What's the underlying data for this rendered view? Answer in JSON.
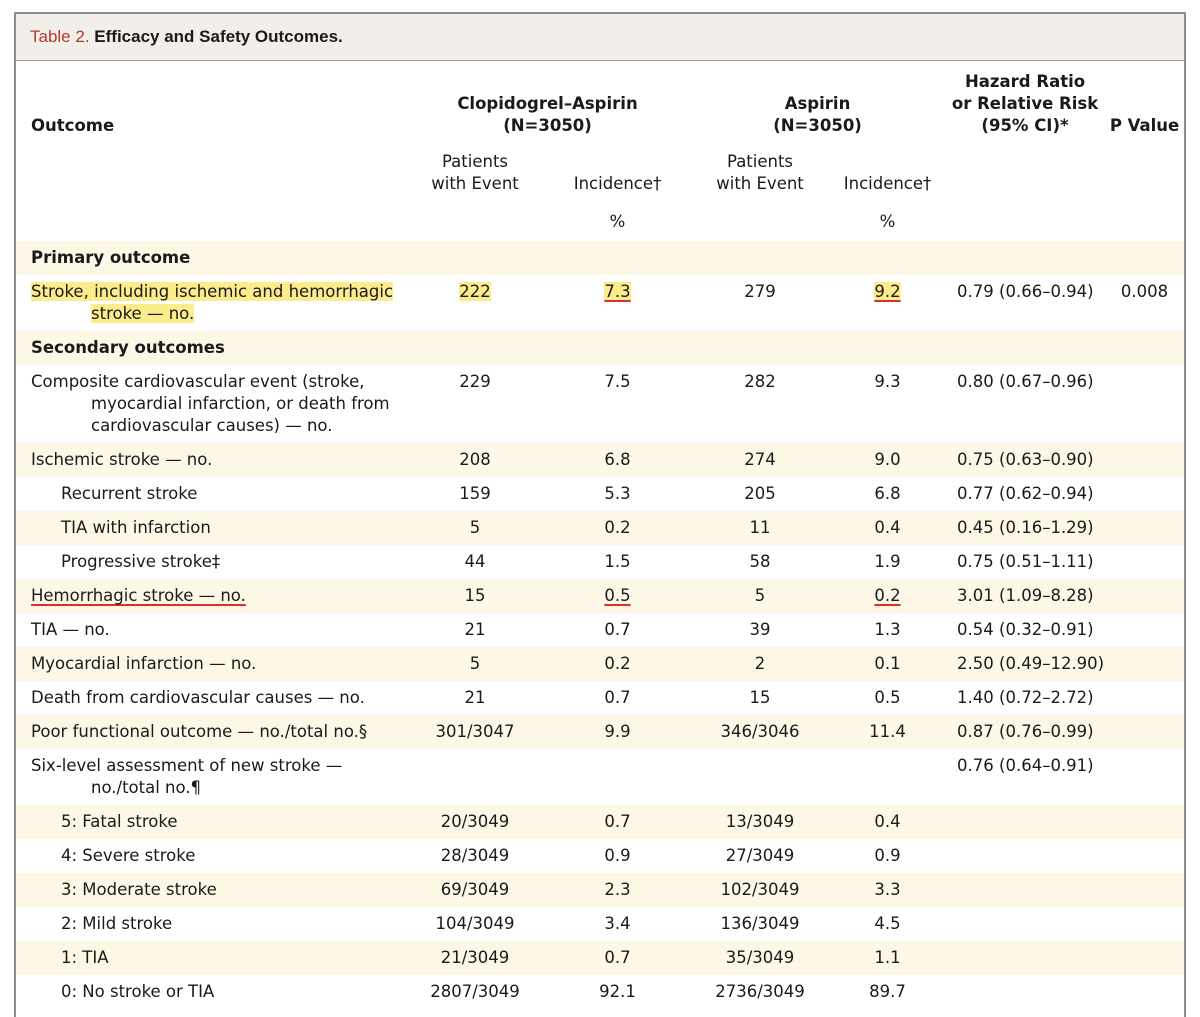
{
  "header": {
    "table_label": "Table 2.",
    "title": "Efficacy and Safety Outcomes."
  },
  "table": {
    "columns": {
      "outcome": "Outcome",
      "group1": "Clopidogrel–Aspirin",
      "group1_n": "(N=3050)",
      "group2": "Aspirin",
      "group2_n": "(N=3050)",
      "hr": [
        "Hazard Ratio",
        "or Relative Risk",
        "(95% CI)*"
      ],
      "p": "P Value"
    },
    "subheaders": [
      "Patients with Event",
      "Incidence†",
      "Patients with Event",
      "Incidence†"
    ],
    "units": [
      "%",
      "%"
    ],
    "rows": [
      {
        "label": "Primary outcome"
      },
      {
        "label": "Stroke, including ischemic and hemorrhagic stroke — no.",
        "g1_patients": "222",
        "g1_incidence": "7.3",
        "g2_patients": "279",
        "g2_incidence": "9.2",
        "hr": "0.79 (0.66–0.94)",
        "p": "0.008"
      },
      {
        "label": "Secondary outcomes"
      },
      {
        "label": "Composite cardiovascular event (stroke, myocardial infarction, or death from cardiovascular causes) — no.",
        "g1_patients": "229",
        "g1_incidence": "7.5",
        "g2_patients": "282",
        "g2_incidence": "9.3",
        "hr": "0.80 (0.67–0.96)"
      },
      {
        "label": "Ischemic stroke — no.",
        "g1_patients": "208",
        "g1_incidence": "6.8",
        "g2_patients": "274",
        "g2_incidence": "9.0",
        "hr": "0.75 (0.63–0.90)"
      },
      {
        "label": "Recurrent stroke",
        "g1_patients": "159",
        "g1_incidence": "5.3",
        "g2_patients": "205",
        "g2_incidence": "6.8",
        "hr": "0.77 (0.62–0.94)"
      },
      {
        "label": "TIA with infarction",
        "g1_patients": "5",
        "g1_incidence": "0.2",
        "g2_patients": "11",
        "g2_incidence": "0.4",
        "hr": "0.45 (0.16–1.29)"
      },
      {
        "label": "Progressive stroke‡",
        "g1_patients": "44",
        "g1_incidence": "1.5",
        "g2_patients": "58",
        "g2_incidence": "1.9",
        "hr": "0.75 (0.51–1.11)"
      },
      {
        "label": "Hemorrhagic stroke — no.",
        "g1_patients": "15",
        "g1_incidence": "0.5",
        "g2_patients": "5",
        "g2_incidence": "0.2",
        "hr": "3.01 (1.09–8.28)"
      },
      {
        "label": "TIA — no.",
        "g1_patients": "21",
        "g1_incidence": "0.7",
        "g2_patients": "39",
        "g2_incidence": "1.3",
        "hr": "0.54 (0.32–0.91)"
      },
      {
        "label": "Myocardial infarction — no.",
        "g1_patients": "5",
        "g1_incidence": "0.2",
        "g2_patients": "2",
        "g2_incidence": "0.1",
        "hr": "2.50 (0.49–12.90)"
      },
      {
        "label": "Death from cardiovascular causes — no.",
        "g1_patients": "21",
        "g1_incidence": "0.7",
        "g2_patients": "15",
        "g2_incidence": "0.5",
        "hr": "1.40 (0.72–2.72)"
      },
      {
        "label": "Poor functional outcome — no./total no.§",
        "g1_patients": "301/3047",
        "g1_incidence": "9.9",
        "g2_patients": "346/3046",
        "g2_incidence": "11.4",
        "hr": "0.87 (0.76–0.99)"
      },
      {
        "label": "Six-level assessment of new stroke — no./total no.¶",
        "hr": "0.76 (0.64–0.91)"
      },
      {
        "label": "5: Fatal stroke",
        "g1_patients": "20/3049",
        "g1_incidence": "0.7",
        "g2_patients": "13/3049",
        "g2_incidence": "0.4"
      },
      {
        "label": "4: Severe stroke",
        "g1_patients": "28/3049",
        "g1_incidence": "0.9",
        "g2_patients": "27/3049",
        "g2_incidence": "0.9"
      },
      {
        "label": "3: Moderate stroke",
        "g1_patients": "69/3049",
        "g1_incidence": "2.3",
        "g2_patients": "102/3049",
        "g2_incidence": "3.3"
      },
      {
        "label": "2: Mild stroke",
        "g1_patients": "104/3049",
        "g1_incidence": "3.4",
        "g2_patients": "136/3049",
        "g2_incidence": "4.5"
      },
      {
        "label": "1: TIA",
        "g1_patients": "21/3049",
        "g1_incidence": "0.7",
        "g2_patients": "35/3049",
        "g2_incidence": "1.1"
      },
      {
        "label": "0: No stroke or TIA",
        "g1_patients": "2807/3049",
        "g1_incidence": "92.1",
        "g2_patients": "2736/3049",
        "g2_incidence": "89.7"
      }
    ]
  }
}
